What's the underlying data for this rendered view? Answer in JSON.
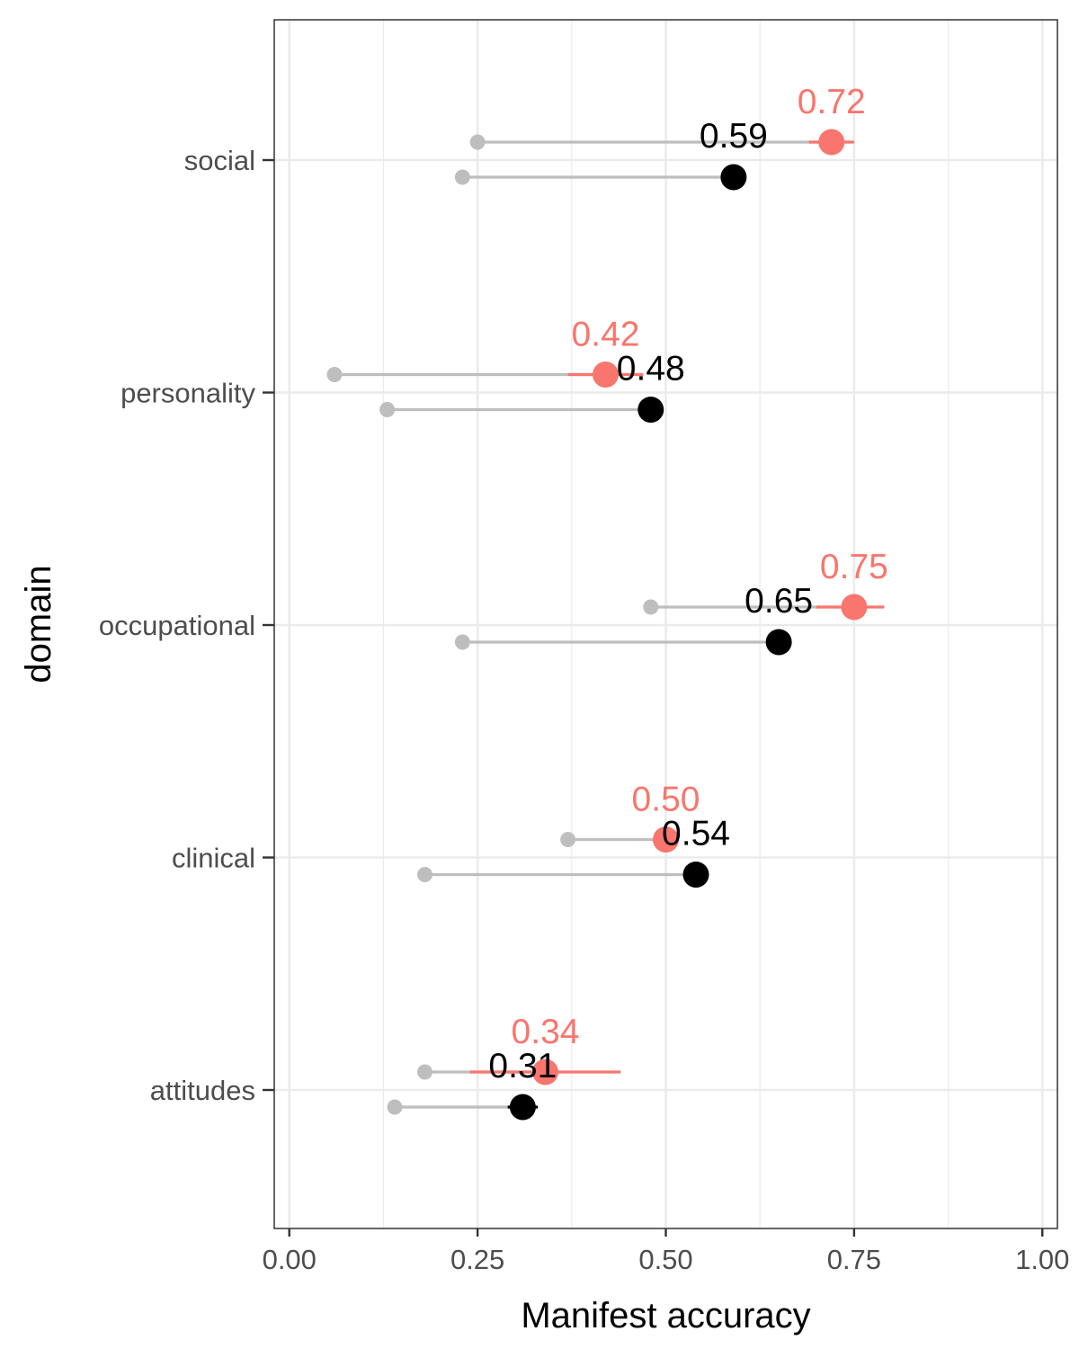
{
  "chart_data": {
    "type": "dumbbell",
    "xlabel": "Manifest accuracy",
    "ylabel": "domain",
    "xlim": [
      -0.02,
      1.02
    ],
    "x_ticks": [
      0.0,
      0.25,
      0.5,
      0.75,
      1.0
    ],
    "x_tick_labels": [
      "0.00",
      "0.25",
      "0.50",
      "0.75",
      "1.00"
    ],
    "categories": [
      "social",
      "personality",
      "occupational",
      "clinical",
      "attitudes"
    ],
    "grid": true,
    "colors": {
      "series_a": "#f8766d",
      "series_b": "#000000",
      "baseline": "#bebebe"
    },
    "series": [
      {
        "color": "#f8766d",
        "position": "upper",
        "points": [
          {
            "category": "social",
            "baseline": 0.25,
            "value": 0.72,
            "ci": [
              0.69,
              0.75
            ],
            "label": "0.72"
          },
          {
            "category": "personality",
            "baseline": 0.06,
            "value": 0.42,
            "ci": [
              0.37,
              0.47
            ],
            "label": "0.42"
          },
          {
            "category": "occupational",
            "baseline": 0.48,
            "value": 0.75,
            "ci": [
              0.7,
              0.79
            ],
            "label": "0.75"
          },
          {
            "category": "clinical",
            "baseline": 0.37,
            "value": 0.5,
            "ci": [
              0.49,
              0.51
            ],
            "label": "0.50"
          },
          {
            "category": "attitudes",
            "baseline": 0.18,
            "value": 0.34,
            "ci": [
              0.24,
              0.44
            ],
            "label": "0.34"
          }
        ]
      },
      {
        "color": "#000000",
        "position": "lower",
        "points": [
          {
            "category": "social",
            "baseline": 0.23,
            "value": 0.59,
            "ci": [
              0.59,
              0.6
            ],
            "label": "0.59"
          },
          {
            "category": "personality",
            "baseline": 0.13,
            "value": 0.48,
            "ci": [
              0.47,
              0.48
            ],
            "label": "0.48"
          },
          {
            "category": "occupational",
            "baseline": 0.23,
            "value": 0.65,
            "ci": [
              0.65,
              0.65
            ],
            "label": "0.65"
          },
          {
            "category": "clinical",
            "baseline": 0.18,
            "value": 0.54,
            "ci": [
              0.54,
              0.55
            ],
            "label": "0.54"
          },
          {
            "category": "attitudes",
            "baseline": 0.14,
            "value": 0.31,
            "ci": [
              0.29,
              0.33
            ],
            "label": "0.31"
          }
        ]
      }
    ]
  }
}
